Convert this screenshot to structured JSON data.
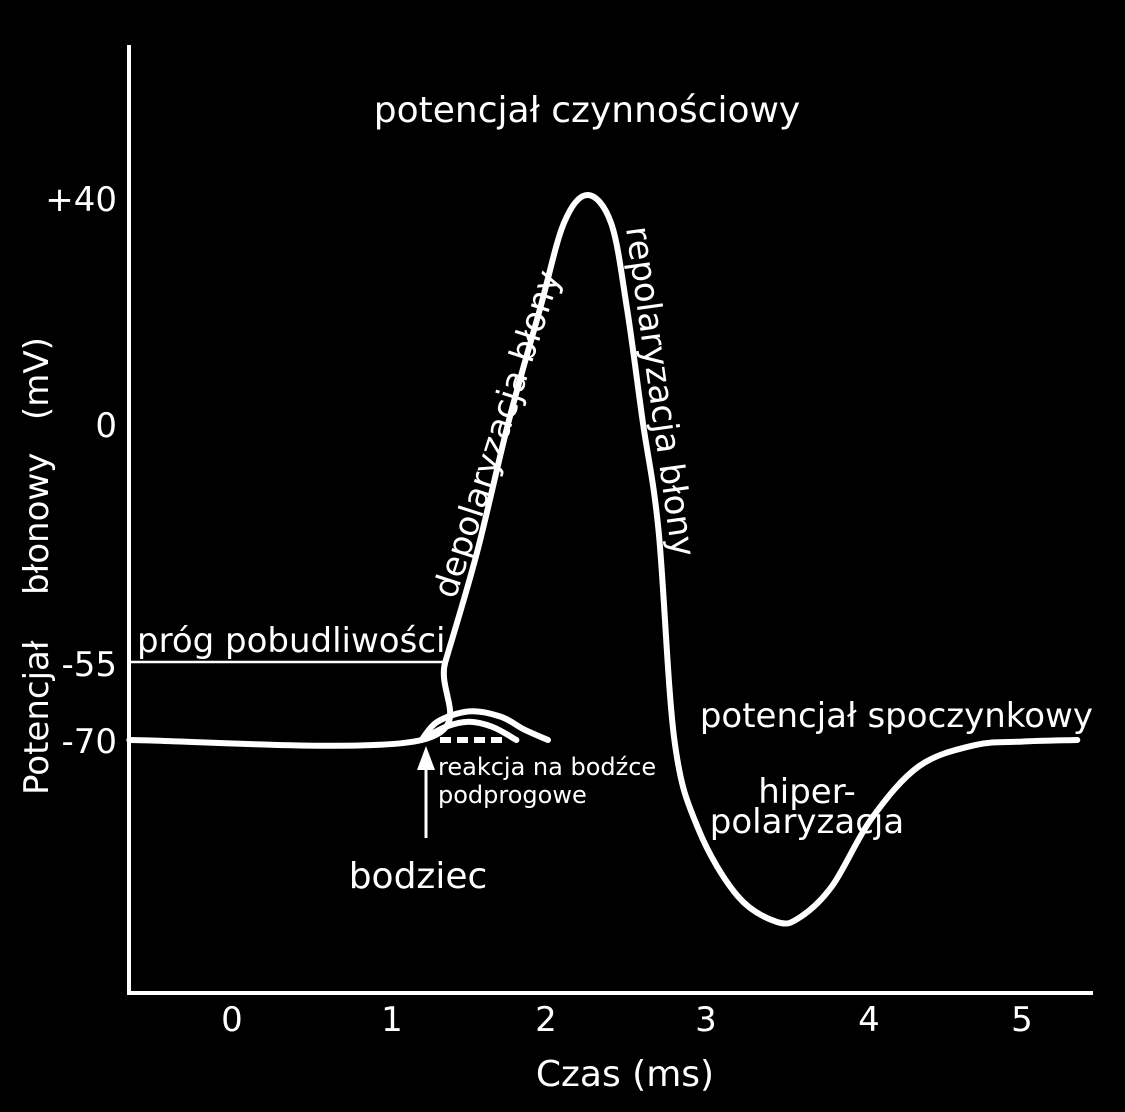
{
  "chart_data": {
    "type": "line",
    "title": "potencjał czynnościowy",
    "xlabel": "Czas (ms)",
    "ylabel": "Potencjał błonowy (mV)",
    "ylabel_parts": [
      "Potencjał",
      "błonowy",
      "(mV)"
    ],
    "x_ticks": [
      "0",
      "1",
      "2",
      "3",
      "4",
      "5"
    ],
    "y_ticks": [
      {
        "label": "+40",
        "value": 40
      },
      {
        "label": "0",
        "value": 0
      },
      {
        "label": "-55",
        "value": -55
      },
      {
        "label": "-70",
        "value": -70
      }
    ],
    "xlim": [
      -0.65,
      5.4
    ],
    "grid": false,
    "series": [
      {
        "role": "action-potential",
        "points": [
          [
            -0.65,
            -70
          ],
          [
            1.2,
            -70
          ],
          [
            1.35,
            -55
          ],
          [
            1.55,
            -30
          ],
          [
            1.75,
            0
          ],
          [
            1.95,
            20
          ],
          [
            2.1,
            35
          ],
          [
            2.25,
            40
          ],
          [
            2.4,
            35
          ],
          [
            2.5,
            20
          ],
          [
            2.6,
            0
          ],
          [
            2.7,
            -25
          ],
          [
            2.8,
            -70
          ],
          [
            2.95,
            -87
          ],
          [
            3.2,
            -100
          ],
          [
            3.45,
            -105
          ],
          [
            3.6,
            -104
          ],
          [
            3.8,
            -98
          ],
          [
            4.05,
            -85
          ],
          [
            4.35,
            -75
          ],
          [
            4.7,
            -71
          ],
          [
            5.0,
            -70.3
          ],
          [
            5.35,
            -70
          ]
        ]
      },
      {
        "role": "subthreshold-response-1",
        "points": [
          [
            1.2,
            -70
          ],
          [
            1.3,
            -66.5
          ],
          [
            1.5,
            -64.5
          ],
          [
            1.7,
            -65.5
          ],
          [
            1.85,
            -68
          ],
          [
            2.0,
            -70
          ]
        ]
      },
      {
        "role": "subthreshold-response-2",
        "points": [
          [
            1.2,
            -70
          ],
          [
            1.35,
            -67.5
          ],
          [
            1.5,
            -66.5
          ],
          [
            1.65,
            -67.5
          ],
          [
            1.8,
            -70
          ]
        ]
      }
    ],
    "threshold": {
      "value": -55,
      "label": "próg pobudliwości"
    },
    "resting": {
      "value": -70,
      "label": "potencjał spoczynkowy"
    },
    "annotations": {
      "depolarization": "depolaryzacja błony",
      "repolarization": "repolaryzacja błony",
      "hyper_line1": "hiper-",
      "hyper_line2": "polaryzacja",
      "stimulus": "bodziec",
      "subthreshold_line1": "reakcja na bodźce",
      "subthreshold_line2": "podprogowe"
    },
    "stimulus_at": 1.2,
    "colors": {
      "background": "#000000",
      "foreground": "#ffffff"
    }
  }
}
